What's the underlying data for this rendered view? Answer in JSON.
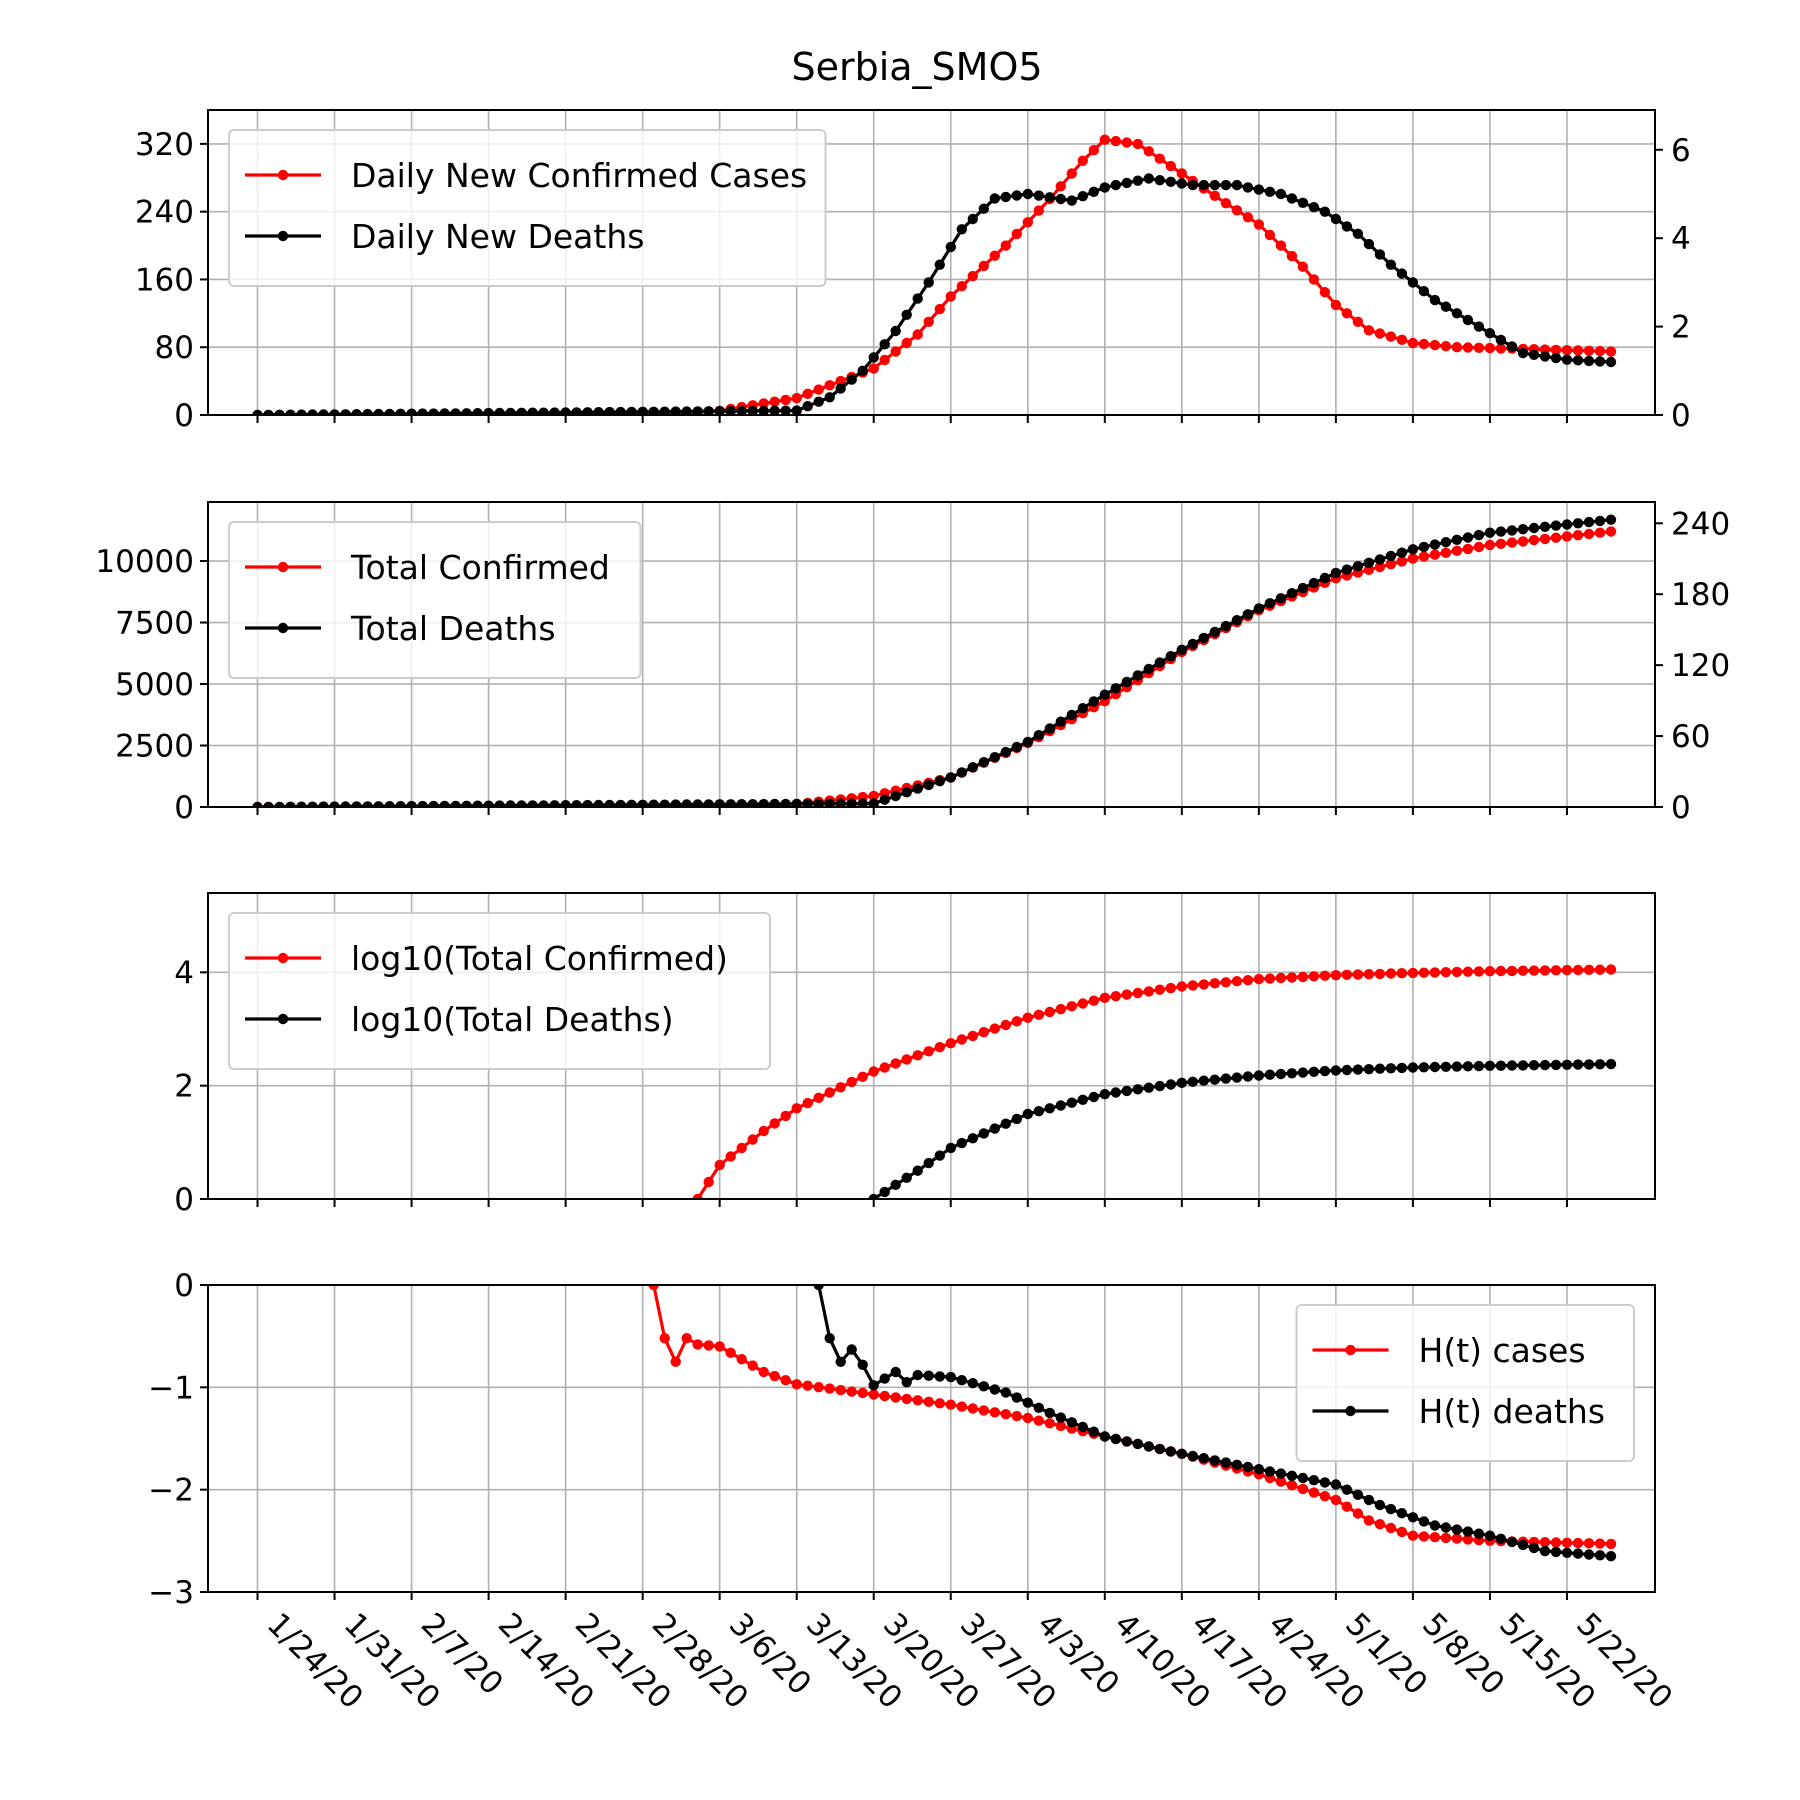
{
  "chart_data": {
    "title": "Serbia_SMO5",
    "type": "line",
    "x_dates": [
      "1/24/20",
      "1/31/20",
      "2/7/20",
      "2/14/20",
      "2/21/20",
      "2/28/20",
      "3/6/20",
      "3/13/20",
      "3/20/20",
      "3/27/20",
      "4/3/20",
      "4/10/20",
      "4/17/20",
      "4/24/20",
      "5/1/20",
      "5/8/20",
      "5/15/20",
      "5/22/20"
    ],
    "x_range": [
      "1/24/20",
      "5/26/20"
    ],
    "colors": {
      "cases": "#ff0000",
      "deaths": "#000000"
    },
    "grid": true,
    "panels": [
      {
        "id": "daily",
        "yticks_left": [
          "0",
          "80",
          "160",
          "240",
          "320"
        ],
        "ylim_left": [
          0,
          360
        ],
        "yticks_right": [
          "0",
          "2",
          "4",
          "6"
        ],
        "ylim_right": [
          0,
          6.9
        ],
        "legend_position": "upper-left",
        "series": [
          {
            "name": "Daily New Confirmed Cases",
            "axis": "left",
            "start": "3/1/20",
            "keypoints": [
              [
                "1/24/20",
                0
              ],
              [
                "2/28/20",
                0
              ],
              [
                "3/6/20",
                5
              ],
              [
                "3/13/20",
                20
              ],
              [
                "3/16/20",
                35
              ],
              [
                "3/20/20",
                55
              ],
              [
                "3/24/20",
                95
              ],
              [
                "3/27/20",
                140
              ],
              [
                "4/1/20",
                200
              ],
              [
                "4/5/20",
                255
              ],
              [
                "4/8/20",
                300
              ],
              [
                "4/10/20",
                325
              ],
              [
                "4/13/20",
                320
              ],
              [
                "4/17/20",
                285
              ],
              [
                "4/21/20",
                250
              ],
              [
                "4/24/20",
                225
              ],
              [
                "4/28/20",
                175
              ],
              [
                "5/1/20",
                130
              ],
              [
                "5/4/20",
                100
              ],
              [
                "5/8/20",
                85
              ],
              [
                "5/12/20",
                80
              ],
              [
                "5/18/20",
                78
              ],
              [
                "5/26/20",
                75
              ]
            ]
          },
          {
            "name": "Daily New Deaths",
            "axis": "right",
            "start": "3/20/20",
            "keypoints": [
              [
                "1/24/20",
                0
              ],
              [
                "3/13/20",
                0.1
              ],
              [
                "3/16/20",
                0.4
              ],
              [
                "3/19/20",
                1.0
              ],
              [
                "3/22/20",
                1.9
              ],
              [
                "3/25/20",
                3.0
              ],
              [
                "3/28/20",
                4.2
              ],
              [
                "3/31/20",
                4.9
              ],
              [
                "4/3/20",
                5.0
              ],
              [
                "4/7/20",
                4.85
              ],
              [
                "4/10/20",
                5.15
              ],
              [
                "4/14/20",
                5.35
              ],
              [
                "4/18/20",
                5.2
              ],
              [
                "4/22/20",
                5.2
              ],
              [
                "4/26/20",
                5.0
              ],
              [
                "4/30/20",
                4.6
              ],
              [
                "5/3/20",
                4.1
              ],
              [
                "5/6/20",
                3.4
              ],
              [
                "5/10/20",
                2.6
              ],
              [
                "5/14/20",
                2.0
              ],
              [
                "5/18/20",
                1.4
              ],
              [
                "5/22/20",
                1.25
              ],
              [
                "5/26/20",
                1.2
              ]
            ]
          }
        ]
      },
      {
        "id": "total",
        "yticks_left": [
          "0",
          "2500",
          "5000",
          "7500",
          "10000"
        ],
        "ylim_left": [
          0,
          12400
        ],
        "yticks_right": [
          "0",
          "60",
          "120",
          "180",
          "240"
        ],
        "ylim_right": [
          0,
          258
        ],
        "legend_position": "upper-left",
        "series": [
          {
            "name": "Total Confirmed",
            "axis": "left",
            "start": "3/6/20",
            "keypoints": [
              [
                "1/24/20",
                0
              ],
              [
                "3/6/20",
                30
              ],
              [
                "3/13/20",
                120
              ],
              [
                "3/20/20",
                450
              ],
              [
                "3/27/20",
                1200
              ],
              [
                "4/3/20",
                2600
              ],
              [
                "4/10/20",
                4300
              ],
              [
                "4/17/20",
                6300
              ],
              [
                "4/24/20",
                8000
              ],
              [
                "5/1/20",
                9300
              ],
              [
                "5/8/20",
                10100
              ],
              [
                "5/15/20",
                10650
              ],
              [
                "5/22/20",
                11000
              ],
              [
                "5/26/20",
                11200
              ]
            ]
          },
          {
            "name": "Total Deaths",
            "axis": "right",
            "start": "3/20/20",
            "keypoints": [
              [
                "1/24/20",
                0
              ],
              [
                "3/20/20",
                3
              ],
              [
                "3/27/20",
                25
              ],
              [
                "4/3/20",
                55
              ],
              [
                "4/10/20",
                95
              ],
              [
                "4/17/20",
                133
              ],
              [
                "4/24/20",
                168
              ],
              [
                "5/1/20",
                198
              ],
              [
                "5/8/20",
                218
              ],
              [
                "5/15/20",
                232
              ],
              [
                "5/22/20",
                239
              ],
              [
                "5/26/20",
                243
              ]
            ]
          }
        ]
      },
      {
        "id": "log",
        "yticks_left": [
          "0",
          "2",
          "4"
        ],
        "ylim_left": [
          0,
          5.4
        ],
        "legend_position": "upper-left",
        "series": [
          {
            "name": "log10(Total Confirmed)",
            "axis": "left",
            "start": "3/4/20",
            "keypoints": [
              [
                "3/4/20",
                0
              ],
              [
                "3/6/20",
                0.6
              ],
              [
                "3/10/20",
                1.2
              ],
              [
                "3/13/20",
                1.6
              ],
              [
                "3/20/20",
                2.25
              ],
              [
                "3/27/20",
                2.75
              ],
              [
                "4/3/20",
                3.2
              ],
              [
                "4/10/20",
                3.55
              ],
              [
                "4/17/20",
                3.75
              ],
              [
                "4/24/20",
                3.88
              ],
              [
                "5/1/20",
                3.95
              ],
              [
                "5/8/20",
                3.99
              ],
              [
                "5/15/20",
                4.02
              ],
              [
                "5/26/20",
                4.05
              ]
            ]
          },
          {
            "name": "log10(Total Deaths)",
            "axis": "left",
            "start": "3/20/20",
            "keypoints": [
              [
                "3/20/20",
                0
              ],
              [
                "3/24/20",
                0.5
              ],
              [
                "3/27/20",
                0.9
              ],
              [
                "4/3/20",
                1.5
              ],
              [
                "4/10/20",
                1.85
              ],
              [
                "4/17/20",
                2.05
              ],
              [
                "4/24/20",
                2.18
              ],
              [
                "5/1/20",
                2.27
              ],
              [
                "5/8/20",
                2.32
              ],
              [
                "5/15/20",
                2.35
              ],
              [
                "5/26/20",
                2.38
              ]
            ]
          }
        ]
      },
      {
        "id": "H",
        "yticks_left": [
          "0",
          "−1",
          "−2",
          "−3"
        ],
        "ylim_left": [
          -3,
          0
        ],
        "legend_position": "upper-right",
        "series": [
          {
            "name": "H(t) cases",
            "axis": "left",
            "start": "3/1/20",
            "keypoints": [
              [
                "2/29/20",
                0
              ],
              [
                "3/1/20",
                -0.52
              ],
              [
                "3/2/20",
                -0.75
              ],
              [
                "3/3/20",
                -0.52
              ],
              [
                "3/4/20",
                -0.58
              ],
              [
                "3/6/20",
                -0.6
              ],
              [
                "3/10/20",
                -0.85
              ],
              [
                "3/13/20",
                -0.97
              ],
              [
                "3/20/20",
                -1.07
              ],
              [
                "3/27/20",
                -1.17
              ],
              [
                "4/3/20",
                -1.3
              ],
              [
                "4/10/20",
                -1.48
              ],
              [
                "4/17/20",
                -1.65
              ],
              [
                "4/24/20",
                -1.85
              ],
              [
                "5/1/20",
                -2.1
              ],
              [
                "5/4/20",
                -2.3
              ],
              [
                "5/8/20",
                -2.45
              ],
              [
                "5/15/20",
                -2.5
              ],
              [
                "5/26/20",
                -2.53
              ]
            ]
          },
          {
            "name": "H(t) deaths",
            "axis": "left",
            "start": "3/19/20",
            "keypoints": [
              [
                "3/15/20",
                0
              ],
              [
                "3/16/20",
                -0.52
              ],
              [
                "3/17/20",
                -0.75
              ],
              [
                "3/18/20",
                -0.63
              ],
              [
                "3/19/20",
                -0.78
              ],
              [
                "3/20/20",
                -0.98
              ],
              [
                "3/22/20",
                -0.85
              ],
              [
                "3/23/20",
                -0.95
              ],
              [
                "3/24/20",
                -0.88
              ],
              [
                "3/27/20",
                -0.9
              ],
              [
                "4/1/20",
                -1.05
              ],
              [
                "4/5/20",
                -1.25
              ],
              [
                "4/10/20",
                -1.48
              ],
              [
                "4/17/20",
                -1.65
              ],
              [
                "4/24/20",
                -1.8
              ],
              [
                "5/1/20",
                -1.95
              ],
              [
                "5/5/20",
                -2.15
              ],
              [
                "5/10/20",
                -2.35
              ],
              [
                "5/15/20",
                -2.45
              ],
              [
                "5/20/20",
                -2.6
              ],
              [
                "5/26/20",
                -2.65
              ]
            ]
          }
        ]
      }
    ]
  }
}
